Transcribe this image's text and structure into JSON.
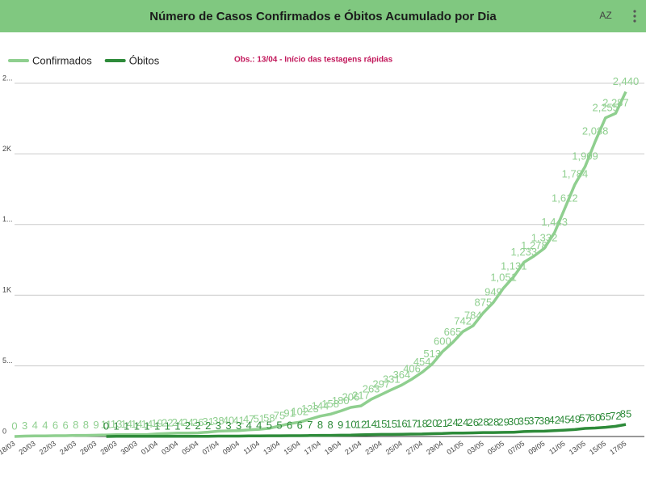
{
  "toolbar": {
    "sort": "AZ"
  },
  "chart_data": {
    "type": "line",
    "title": "Número de Casos Confirmados e Óbitos Acumulado por Dia",
    "annotation": "Obs.: 13/04 - Início das testagens rápidas",
    "legend_position": "top-left",
    "grid": true,
    "categories": [
      "18/03",
      null,
      "20/03",
      null,
      "22/03",
      null,
      "24/03",
      null,
      "26/03",
      null,
      "28/03",
      null,
      "30/03",
      null,
      "01/04",
      null,
      "03/04",
      null,
      "05/04",
      null,
      "07/04",
      null,
      "09/04",
      null,
      "11/04",
      null,
      "13/04",
      null,
      "15/04",
      null,
      "17/04",
      null,
      "19/04",
      null,
      "21/04",
      null,
      "23/04",
      null,
      "25/04",
      null,
      "27/04",
      null,
      "29/04",
      null,
      "01/05",
      null,
      "03/05",
      null,
      "05/05",
      null,
      "07/05",
      null,
      "09/05",
      null,
      "11/05",
      null,
      "13/05",
      null,
      "15/05",
      null,
      "17/05"
    ],
    "ylim": [
      0,
      2500
    ],
    "yticks": [
      0,
      {
        "value": 500,
        "label": "5..."
      },
      {
        "value": 1000,
        "label": "1K"
      },
      {
        "value": 1500,
        "label": "1..."
      },
      {
        "value": 2000,
        "label": "2K"
      },
      {
        "value": 2500,
        "label": "2..."
      }
    ],
    "series": [
      {
        "name": "Confirmados",
        "color": "#8fcf8f",
        "values": [
          0,
          3,
          4,
          4,
          6,
          6,
          8,
          8,
          9,
          11,
          13,
          14,
          14,
          14,
          19,
          22,
          24,
          24,
          26,
          31,
          38,
          40,
          41,
          47,
          51,
          58,
          75,
          91,
          102,
          123,
          144,
          158,
          180,
          206,
          217,
          263,
          297,
          331,
          364,
          406,
          454,
          513,
          600,
          665,
          742,
          784,
          875,
          949,
          1051,
          1131,
          1233,
          1278,
          1332,
          1443,
          1612,
          1784,
          1909,
          2088,
          2255,
          2287,
          2440
        ],
        "value_labels": [
          "0",
          "3",
          "4",
          "4",
          "6",
          "6",
          "8",
          "8",
          "9",
          "11",
          "13",
          "14",
          "14",
          "14",
          "19",
          "22",
          "24",
          "24",
          "26",
          "31",
          "38",
          "40",
          "41",
          "47",
          "51",
          "58",
          "75",
          "91",
          "102",
          "123",
          "144",
          "158",
          "180",
          "206",
          "217",
          "263",
          "297",
          "331",
          "364",
          "406",
          "454",
          "513",
          "600",
          "665",
          "742",
          "784",
          "875",
          "949",
          "1,051",
          "1,131",
          "1,233",
          "1,278",
          "1,332",
          "1,443",
          "1,612",
          "1,784",
          "1,909",
          "2,088",
          "2,255",
          "2,287",
          "2,440"
        ]
      },
      {
        "name": "Óbitos",
        "color": "#2e8b3a",
        "values": [
          null,
          null,
          null,
          null,
          null,
          null,
          null,
          null,
          null,
          0,
          1,
          1,
          1,
          1,
          1,
          1,
          1,
          2,
          2,
          2,
          3,
          3,
          3,
          4,
          4,
          5,
          5,
          6,
          6,
          7,
          8,
          8,
          9,
          10,
          12,
          14,
          15,
          15,
          16,
          17,
          18,
          20,
          21,
          24,
          24,
          26,
          28,
          28,
          29,
          30,
          35,
          37,
          38,
          42,
          45,
          49,
          57,
          60,
          65,
          72,
          85
        ]
      }
    ]
  }
}
